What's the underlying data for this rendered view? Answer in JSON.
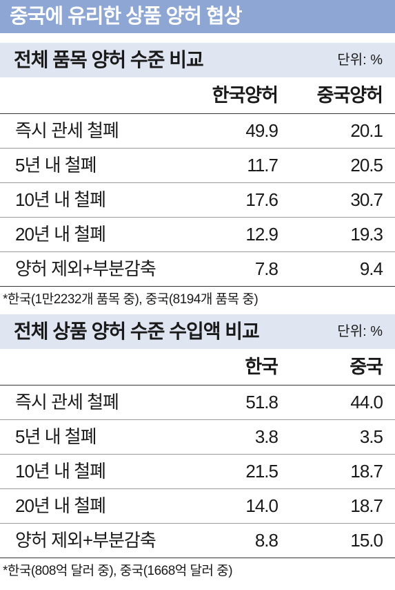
{
  "header": {
    "title": "중국에 유리한 상품 양허 협상"
  },
  "tables": [
    {
      "title": "전체 품목 양허 수준 비교",
      "unit": "단위: %",
      "columns": [
        "한국양허",
        "중국양허"
      ],
      "rows": [
        {
          "label": "즉시 관세 철폐",
          "values": [
            "49.9",
            "20.1"
          ]
        },
        {
          "label": "5년 내 철폐",
          "values": [
            "11.7",
            "20.5"
          ]
        },
        {
          "label": "10년 내 철폐",
          "values": [
            "17.6",
            "30.7"
          ]
        },
        {
          "label": "20년 내 철폐",
          "values": [
            "12.9",
            "19.3"
          ]
        },
        {
          "label": "양허 제외+부분감축",
          "values": [
            "7.8",
            "9.4"
          ]
        }
      ],
      "note": "*한국(1만2232개 품목 중), 중국(8194개 품목 중)"
    },
    {
      "title": "전체 상품 양허 수준 수입액 비교",
      "unit": "단위: %",
      "columns": [
        "한국",
        "중국"
      ],
      "rows": [
        {
          "label": "즉시 관세 철폐",
          "values": [
            "51.8",
            "44.0"
          ]
        },
        {
          "label": "5년 내 철폐",
          "values": [
            "3.8",
            "3.5"
          ]
        },
        {
          "label": "10년 내 철폐",
          "values": [
            "21.5",
            "18.7"
          ]
        },
        {
          "label": "20년 내 철폐",
          "values": [
            "14.0",
            "18.7"
          ]
        },
        {
          "label": "양허 제외+부분감축",
          "values": [
            "8.8",
            "15.0"
          ]
        }
      ],
      "note": "*한국(808억 달러 중), 중국(1668억 달러 중)"
    }
  ]
}
